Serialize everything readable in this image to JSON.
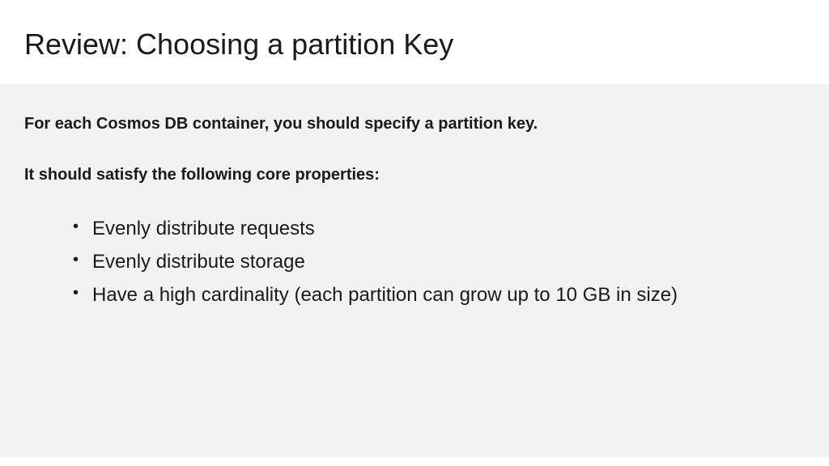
{
  "slide": {
    "title": "Review: Choosing a partition Key",
    "intro": "For each Cosmos DB container, you should specify a partition key.",
    "subhead": "It should satisfy the following core properties:",
    "bullets": [
      "Evenly distribute requests",
      "Evenly distribute storage",
      "Have a high cardinality (each partition can grow up to 10 GB in size)"
    ]
  },
  "style": {
    "header_bg": "#ffffff",
    "content_bg": "#f2f2f2",
    "text_color": "#1a1a1a",
    "title_fontsize": 36,
    "intro_fontsize": 20,
    "bullet_fontsize": 24
  }
}
